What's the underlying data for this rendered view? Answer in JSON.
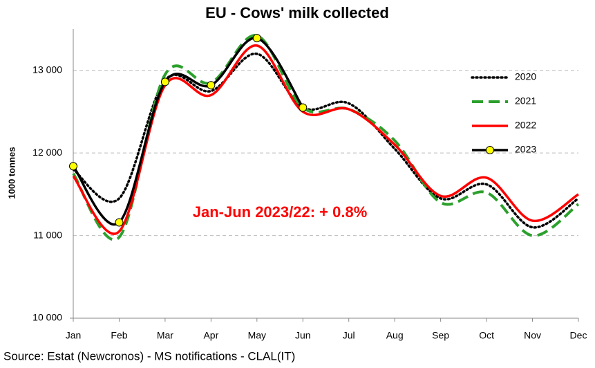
{
  "chart_data": {
    "type": "line",
    "title": "EU - Cows' milk collected",
    "y_label": "1000 tonnes",
    "annotation": "Jan-Jun 2023/22: + 0.8%",
    "source": "Source: Estat (Newcronos) - MS notifications - CLAL(IT)",
    "categories": [
      "Jan",
      "Feb",
      "Mar",
      "Apr",
      "May",
      "Jun",
      "Jul",
      "Aug",
      "Sep",
      "Oct",
      "Nov",
      "Dec"
    ],
    "series": [
      {
        "name": "2020",
        "color": "#000000",
        "dash": "dotted",
        "values": [
          11800,
          11450,
          12880,
          12750,
          13200,
          12550,
          12600,
          12050,
          11450,
          11620,
          11100,
          11450
        ]
      },
      {
        "name": "2021",
        "color": "#2ca02c",
        "dash": "dashed",
        "values": [
          11750,
          10980,
          12950,
          12850,
          13420,
          12550,
          12530,
          12150,
          11400,
          11520,
          11000,
          11380
        ]
      },
      {
        "name": "2022",
        "color": "#ff0000",
        "dash": "solid",
        "values": [
          11720,
          11050,
          12820,
          12700,
          13300,
          12500,
          12530,
          12100,
          11480,
          11700,
          11180,
          11500
        ]
      },
      {
        "name": "2023",
        "color": "#000000",
        "dash": "solid",
        "marker": "circle",
        "marker_color": "#ffff00",
        "values": [
          11840,
          11160,
          12860,
          12820,
          13390,
          12550,
          null,
          null,
          null,
          null,
          null,
          null
        ]
      }
    ],
    "ylim": [
      10000,
      13500
    ],
    "yticks": [
      {
        "value": 10000,
        "label": "10 000"
      },
      {
        "value": 11000,
        "label": "11 000"
      },
      {
        "value": 12000,
        "label": "12 000"
      },
      {
        "value": 13000,
        "label": "13 000"
      }
    ],
    "grid": true,
    "legend": "right-top"
  }
}
